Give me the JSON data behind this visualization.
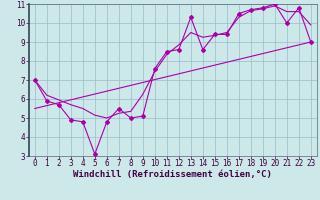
{
  "xlabel": "Windchill (Refroidissement éolien,°C)",
  "bg_color": "#cce8e8",
  "grid_color": "#99bbcc",
  "line_color": "#aa00aa",
  "xlim": [
    -0.5,
    23.5
  ],
  "ylim": [
    3,
    11
  ],
  "yticks": [
    3,
    4,
    5,
    6,
    7,
    8,
    9,
    10,
    11
  ],
  "xticks": [
    0,
    1,
    2,
    3,
    4,
    5,
    6,
    7,
    8,
    9,
    10,
    11,
    12,
    13,
    14,
    15,
    16,
    17,
    18,
    19,
    20,
    21,
    22,
    23
  ],
  "data_x": [
    0,
    1,
    2,
    3,
    4,
    5,
    6,
    7,
    8,
    9,
    10,
    11,
    12,
    13,
    14,
    15,
    16,
    17,
    18,
    19,
    20,
    21,
    22,
    23
  ],
  "data_y": [
    7.0,
    5.9,
    5.7,
    4.9,
    4.8,
    3.1,
    4.8,
    5.5,
    5.0,
    5.1,
    7.6,
    8.5,
    8.6,
    10.3,
    8.6,
    9.4,
    9.4,
    10.5,
    10.7,
    10.8,
    11.0,
    10.0,
    10.8,
    9.0
  ],
  "smooth_y": [
    7.0,
    6.2,
    5.95,
    5.7,
    5.5,
    5.15,
    5.0,
    5.25,
    5.35,
    6.25,
    7.45,
    8.35,
    8.85,
    9.5,
    9.25,
    9.35,
    9.5,
    10.3,
    10.65,
    10.75,
    10.9,
    10.6,
    10.6,
    9.9
  ],
  "trend_x": [
    0,
    23
  ],
  "trend_y": [
    5.5,
    9.0
  ],
  "tick_fontsize": 5.5,
  "xlabel_fontsize": 6.5
}
